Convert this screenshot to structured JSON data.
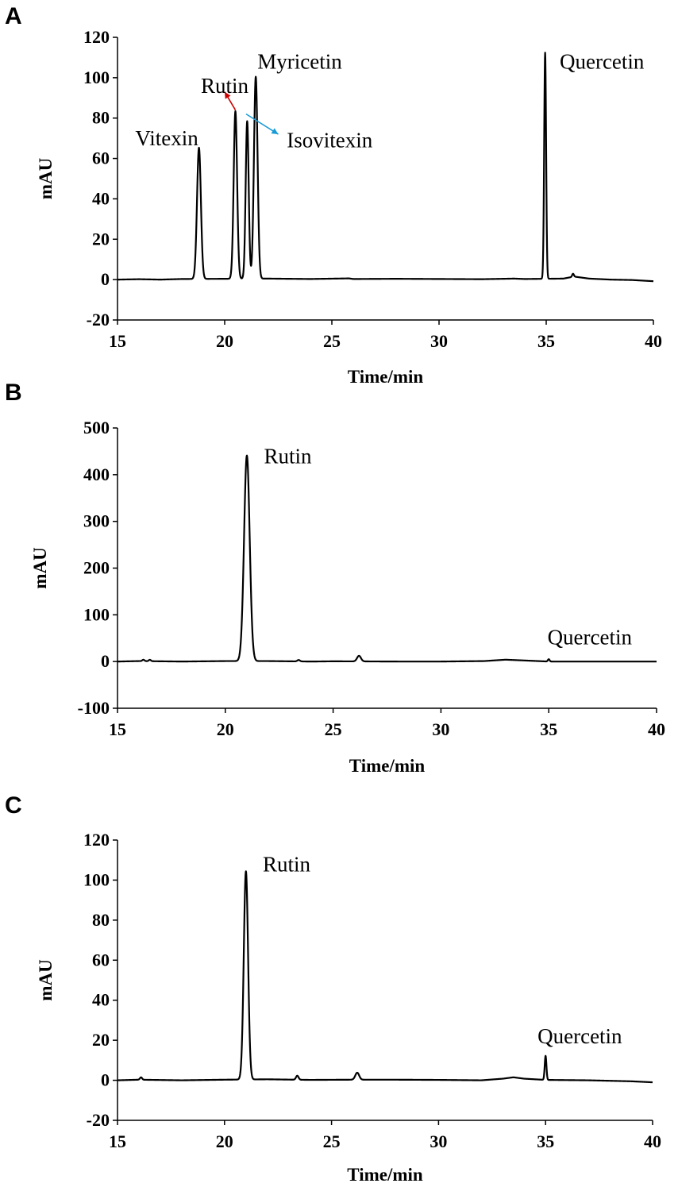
{
  "chart_data": [
    {
      "panel": "A",
      "type": "line",
      "xlabel": "Time/min",
      "ylabel": "mAU",
      "xlim": [
        15,
        40
      ],
      "ylim": [
        -20,
        120
      ],
      "xticks": [
        "15",
        "20",
        "25",
        "30",
        "35",
        "40"
      ],
      "yticks": [
        "-20",
        "0",
        "20",
        "40",
        "60",
        "80",
        "100",
        "120"
      ],
      "grid": false,
      "baseline": [
        [
          15,
          0
        ],
        [
          16,
          0.2
        ],
        [
          17,
          0
        ],
        [
          18,
          0.3
        ],
        [
          22,
          0.5
        ],
        [
          24,
          0.3
        ],
        [
          25.8,
          0.6
        ],
        [
          26,
          0.3
        ],
        [
          28,
          0.4
        ],
        [
          30,
          0.3
        ],
        [
          32,
          0.2
        ],
        [
          33.5,
          0.5
        ],
        [
          34,
          0.3
        ],
        [
          35.8,
          0.5
        ],
        [
          36.3,
          1.5
        ],
        [
          37,
          0.5
        ],
        [
          38,
          0
        ],
        [
          39,
          -0.2
        ],
        [
          40,
          -0.8
        ]
      ],
      "peaks": [
        {
          "t": 18.8,
          "h": 65,
          "w": 0.09
        },
        {
          "t": 20.5,
          "h": 83,
          "w": 0.08
        },
        {
          "t": 21.05,
          "h": 78,
          "w": 0.07
        },
        {
          "t": 21.45,
          "h": 100,
          "w": 0.085
        },
        {
          "t": 34.95,
          "h": 112,
          "w": 0.045
        },
        {
          "t": 36.25,
          "h": 1.5,
          "w": 0.04
        }
      ],
      "annotations": [
        {
          "text": "Vitexin",
          "x": 17.3,
          "y": 70,
          "color": "#000000"
        },
        {
          "text": "Rutin",
          "x": 20.0,
          "y": 96,
          "color": "#cc0000"
        },
        {
          "text": "Myricetin",
          "x": 23.5,
          "y": 108,
          "color": "#000000"
        },
        {
          "text": "Isovitexin",
          "x": 24.9,
          "y": 69,
          "color": "#1a9bd7"
        },
        {
          "text": "Quercetin",
          "x": 37.6,
          "y": 108,
          "color": "#000000"
        }
      ],
      "arrows": [
        {
          "from": [
            20.5,
            84
          ],
          "to": [
            20.0,
            93
          ],
          "color": "#cc0000"
        },
        {
          "from": [
            21.0,
            82
          ],
          "to": [
            22.5,
            72
          ],
          "color": "#1a9bd7"
        }
      ]
    },
    {
      "panel": "B",
      "type": "line",
      "xlabel": "Time/min",
      "ylabel": "mAU",
      "xlim": [
        15,
        40
      ],
      "ylim": [
        -100,
        500
      ],
      "xticks": [
        "15",
        "20",
        "25",
        "30",
        "35",
        "40"
      ],
      "yticks": [
        "-100",
        "0",
        "100",
        "200",
        "300",
        "400",
        "500"
      ],
      "grid": false,
      "baseline": [
        [
          15,
          0
        ],
        [
          16,
          1
        ],
        [
          18,
          0
        ],
        [
          20,
          1
        ],
        [
          22,
          1
        ],
        [
          24,
          0
        ],
        [
          25,
          0.5
        ],
        [
          28,
          0
        ],
        [
          30,
          0
        ],
        [
          32,
          1
        ],
        [
          33,
          4
        ],
        [
          34,
          2
        ],
        [
          35,
          0
        ],
        [
          37,
          0
        ],
        [
          40,
          0
        ]
      ],
      "peaks": [
        {
          "t": 16.2,
          "h": 3,
          "w": 0.05
        },
        {
          "t": 16.5,
          "h": 3,
          "w": 0.05
        },
        {
          "t": 21.0,
          "h": 440,
          "w": 0.13
        },
        {
          "t": 23.4,
          "h": 3,
          "w": 0.06
        },
        {
          "t": 26.2,
          "h": 12,
          "w": 0.09
        },
        {
          "t": 35.0,
          "h": 5,
          "w": 0.04
        }
      ],
      "annotations": [
        {
          "text": "Rutin",
          "x": 22.9,
          "y": 440,
          "color": "#000000"
        },
        {
          "text": "Quercetin",
          "x": 36.9,
          "y": 52,
          "color": "#000000"
        }
      ],
      "arrows": []
    },
    {
      "panel": "C",
      "type": "line",
      "xlabel": "Time/min",
      "ylabel": "mAU",
      "xlim": [
        15,
        40
      ],
      "ylim": [
        -20,
        120
      ],
      "xticks": [
        "15",
        "20",
        "25",
        "30",
        "35",
        "40"
      ],
      "yticks": [
        "-20",
        "0",
        "20",
        "40",
        "60",
        "80",
        "100",
        "120"
      ],
      "grid": false,
      "baseline": [
        [
          15,
          0
        ],
        [
          16,
          0.3
        ],
        [
          18,
          0
        ],
        [
          20,
          0.3
        ],
        [
          22,
          0.5
        ],
        [
          24,
          0.2
        ],
        [
          26,
          0.3
        ],
        [
          28,
          0.3
        ],
        [
          30,
          0.2
        ],
        [
          32,
          0
        ],
        [
          33,
          0.8
        ],
        [
          33.5,
          1.5
        ],
        [
          34,
          0.8
        ],
        [
          35,
          0.2
        ],
        [
          37,
          0
        ],
        [
          39,
          -0.5
        ],
        [
          40,
          -1
        ]
      ],
      "peaks": [
        {
          "t": 16.1,
          "h": 1.2,
          "w": 0.05
        },
        {
          "t": 21.0,
          "h": 104,
          "w": 0.1
        },
        {
          "t": 23.4,
          "h": 2,
          "w": 0.06
        },
        {
          "t": 26.2,
          "h": 3.5,
          "w": 0.09
        },
        {
          "t": 35.0,
          "h": 12,
          "w": 0.04
        }
      ],
      "annotations": [
        {
          "text": "Rutin",
          "x": 22.9,
          "y": 108,
          "color": "#000000"
        },
        {
          "text": "Quercetin",
          "x": 36.6,
          "y": 22,
          "color": "#000000"
        }
      ],
      "arrows": []
    }
  ]
}
